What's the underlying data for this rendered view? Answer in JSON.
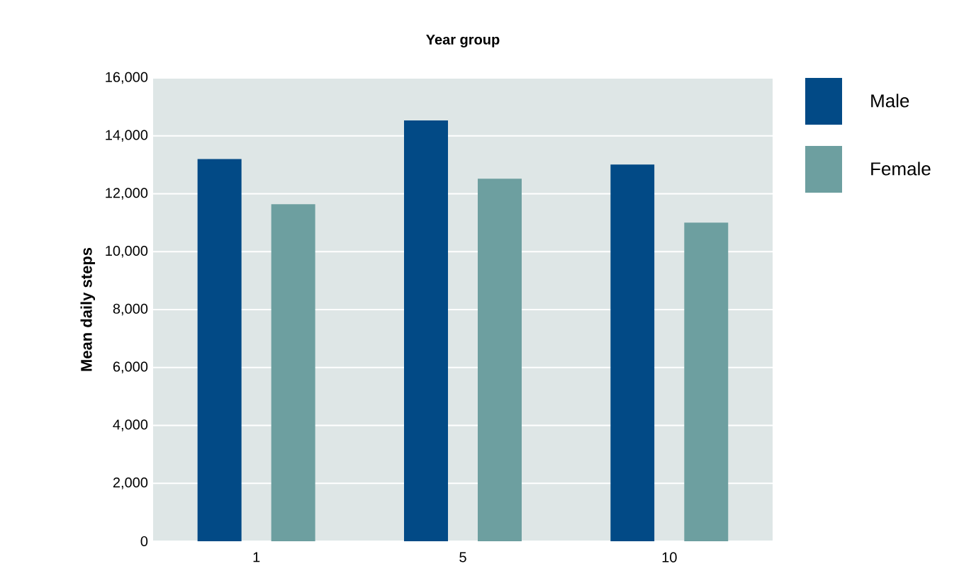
{
  "chart_data": {
    "type": "bar",
    "xlabel": "Year group",
    "ylabel": "Mean daily steps",
    "categories": [
      "1",
      "5",
      "10"
    ],
    "series": [
      {
        "name": "Male",
        "color": "#024a86",
        "values": [
          13200,
          14530,
          13010
        ]
      },
      {
        "name": "Female",
        "color": "#6d9fa0",
        "values": [
          11640,
          12520,
          11000
        ]
      }
    ],
    "ylim": [
      0,
      16000
    ],
    "yticks": [
      {
        "value": 0,
        "label": "0"
      },
      {
        "value": 2000,
        "label": "2,000"
      },
      {
        "value": 4000,
        "label": "4,000"
      },
      {
        "value": 6000,
        "label": "6,000"
      },
      {
        "value": 8000,
        "label": "8,000"
      },
      {
        "value": 10000,
        "label": "10,000"
      },
      {
        "value": 12000,
        "label": "12,000"
      },
      {
        "value": 14000,
        "label": "14,000"
      },
      {
        "value": 16000,
        "label": "16,000"
      }
    ],
    "grid": "y",
    "legend": "top right"
  }
}
